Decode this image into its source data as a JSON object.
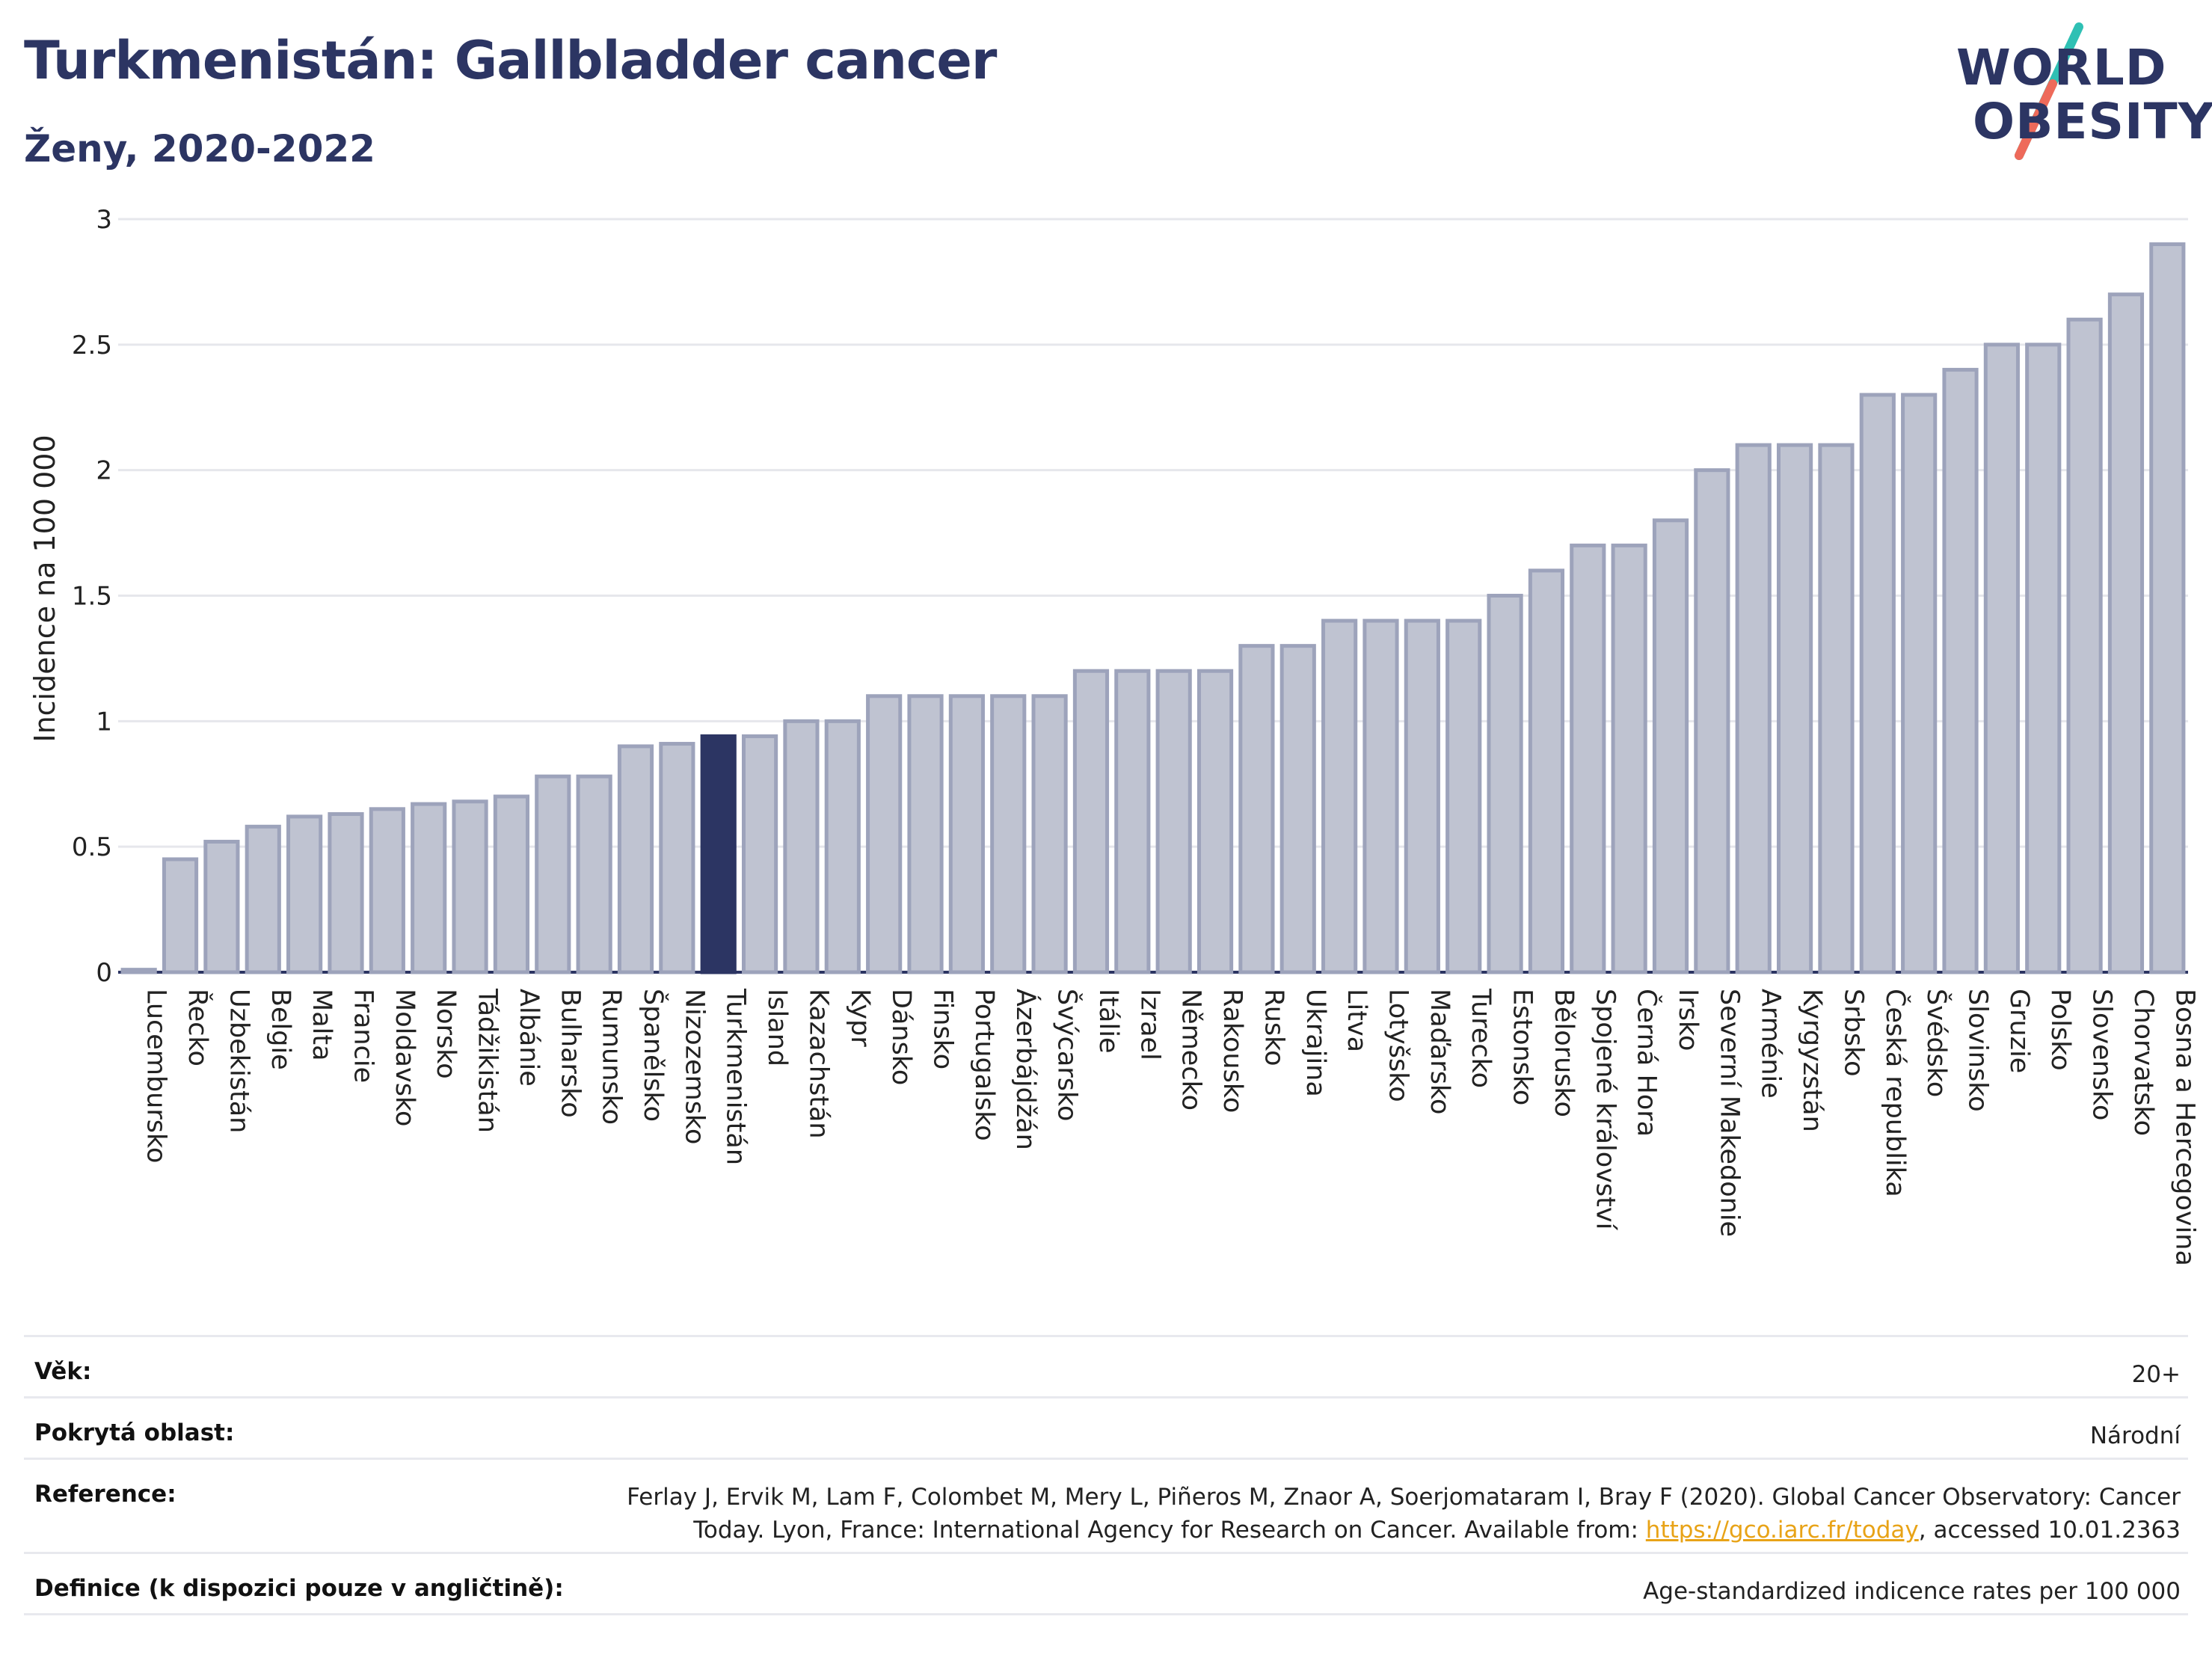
{
  "header": {
    "title": "Turkmenistán: Gallbladder cancer",
    "subtitle": "Ženy, 2020-2022"
  },
  "logo": {
    "line1": "WORLD",
    "line2": "OBESITY"
  },
  "colors": {
    "bar": "#bfc3d1",
    "bar_stroke": "#9da3bb",
    "highlight": "#2c3563",
    "grid": "#e6e7ec",
    "axis": "#2c3563"
  },
  "chart_data": {
    "type": "bar",
    "ylabel": "Incidence na 100 000",
    "ylim": [
      0,
      3
    ],
    "yticks": [
      0,
      0.5,
      1,
      1.5,
      2,
      2.5,
      3
    ],
    "highlight": "Turkmenistán",
    "categories": [
      "Lucembursko",
      "Řecko",
      "Uzbekistán",
      "Belgie",
      "Malta",
      "Francie",
      "Moldavsko",
      "Norsko",
      "Tádžikistán",
      "Albánie",
      "Bulharsko",
      "Rumunsko",
      "Španělsko",
      "Nizozemsko",
      "Turkmenistán",
      "Island",
      "Kazachstán",
      "Kypr",
      "Dánsko",
      "Finsko",
      "Portugalsko",
      "Ázerbájdžán",
      "Švýcarsko",
      "Itálie",
      "Izrael",
      "Německo",
      "Rakousko",
      "Rusko",
      "Ukrajina",
      "Litva",
      "Lotyšsko",
      "Maďarsko",
      "Turecko",
      "Estonsko",
      "Bělorusko",
      "Spojené království",
      "Černá Hora",
      "Irsko",
      "Severní Makedonie",
      "Arménie",
      "Kyrgyzstán",
      "Srbsko",
      "Česká republika",
      "Švédsko",
      "Slovinsko",
      "Gruzie",
      "Polsko",
      "Slovensko",
      "Chorvatsko",
      "Bosna a Hercegovina"
    ],
    "values": [
      0.01,
      0.45,
      0.52,
      0.58,
      0.62,
      0.63,
      0.65,
      0.67,
      0.68,
      0.7,
      0.78,
      0.78,
      0.9,
      0.91,
      0.94,
      0.94,
      1.0,
      1.0,
      1.1,
      1.1,
      1.1,
      1.1,
      1.1,
      1.2,
      1.2,
      1.2,
      1.2,
      1.3,
      1.3,
      1.4,
      1.4,
      1.4,
      1.4,
      1.5,
      1.6,
      1.7,
      1.7,
      1.8,
      2.0,
      2.1,
      2.1,
      2.1,
      2.3,
      2.3,
      2.4,
      2.5,
      2.5,
      2.6,
      2.7,
      2.9
    ]
  },
  "footer": {
    "age_label": "Věk:",
    "age_value": "20+",
    "area_label": "Pokrytá oblast:",
    "area_value": "Národní",
    "ref_label": "Reference:",
    "ref_line1": "Ferlay J, Ervik M, Lam F, Colombet M, Mery L, Piñeros M, Znaor A, Soerjomataram I, Bray F (2020). Global Cancer Observatory: Cancer",
    "ref_line2_pre": "Today. Lyon, France: International Agency for Research on Cancer. Available from: ",
    "ref_link": "https://gco.iarc.fr/today",
    "ref_line2_post": ", accessed 10.01.2363",
    "def_label": "Definice (k dispozici pouze v angličtině):",
    "def_value": "Age-standardized indicence rates per 100 000"
  }
}
